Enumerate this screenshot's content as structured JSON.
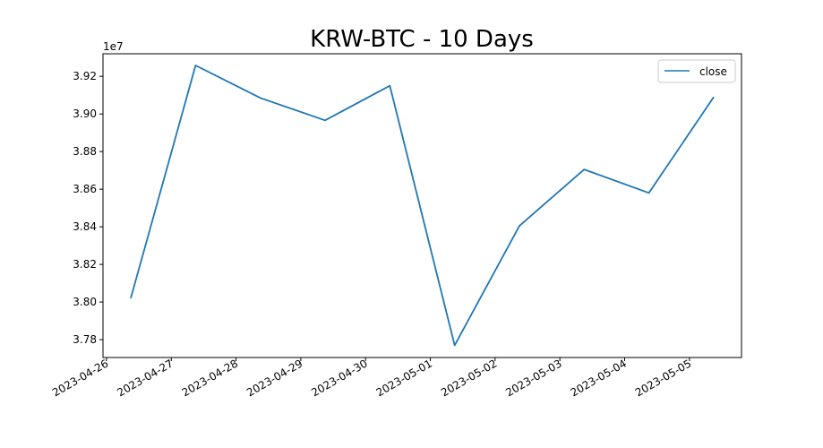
{
  "chart_data": {
    "type": "line",
    "title": "KRW-BTC - 10 Days",
    "xlabel": "",
    "ylabel": "",
    "y_offset_label": "1e7",
    "x": [
      "2023-04-26 09:00",
      "2023-04-27 09:00",
      "2023-04-28 09:00",
      "2023-04-29 09:00",
      "2023-04-30 09:00",
      "2023-05-01 09:00",
      "2023-05-02 09:00",
      "2023-05-03 09:00",
      "2023-05-04 09:00",
      "2023-05-05 09:00"
    ],
    "series": [
      {
        "name": "close",
        "color": "#1f77b4",
        "values": [
          38020000,
          39258000,
          39085000,
          38966000,
          39150000,
          37770000,
          38405000,
          38705000,
          38580000,
          39090000
        ]
      }
    ],
    "x_ticks": [
      "2023-04-26",
      "2023-04-27",
      "2023-04-28",
      "2023-04-29",
      "2023-04-30",
      "2023-05-01",
      "2023-05-02",
      "2023-05-03",
      "2023-05-04",
      "2023-05-05"
    ],
    "y_ticks": [
      37800000,
      38000000,
      38200000,
      38400000,
      38600000,
      38800000,
      39000000,
      39200000
    ],
    "y_tick_labels": [
      "3.78",
      "3.80",
      "3.82",
      "3.84",
      "3.86",
      "3.88",
      "3.90",
      "3.92"
    ],
    "xlim": [
      "2023-04-25 22:42",
      "2023-05-05 19:18"
    ],
    "ylim": [
      37705000,
      39320000
    ],
    "grid": false,
    "legend_position": "top-right"
  }
}
